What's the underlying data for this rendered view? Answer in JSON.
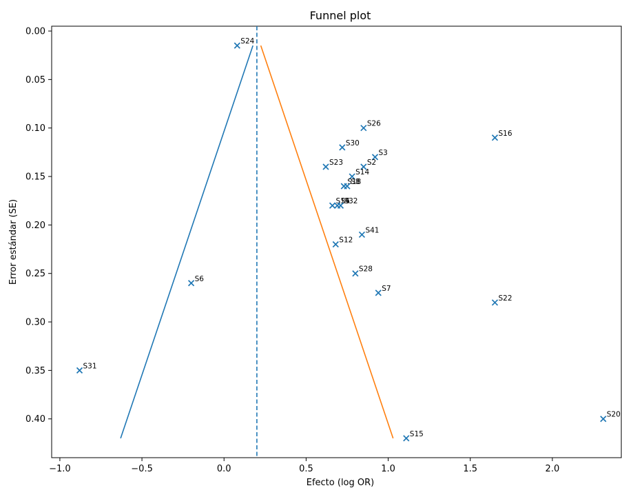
{
  "chart_data": {
    "type": "scatter",
    "title": "Funnel plot",
    "xlabel": "Efecto (log OR)",
    "ylabel": "Error estándar (SE)",
    "xlim": [
      -1.05,
      2.42
    ],
    "ylim": [
      0.44,
      -0.005
    ],
    "y_inverted": true,
    "xticks": [
      -1.0,
      -0.5,
      0.0,
      0.5,
      1.0,
      1.5,
      2.0
    ],
    "xtick_labels": [
      "−1.0",
      "−0.5",
      "0.0",
      "0.5",
      "1.0",
      "1.5",
      "2.0"
    ],
    "yticks": [
      0.0,
      0.05,
      0.1,
      0.15,
      0.2,
      0.25,
      0.3,
      0.35,
      0.4
    ],
    "ytick_labels": [
      "0.00",
      "0.05",
      "0.10",
      "0.15",
      "0.20",
      "0.25",
      "0.30",
      "0.35",
      "0.40"
    ],
    "grid": false,
    "marker": "x",
    "marker_color": "#1f77b4",
    "reference_line": {
      "x": 0.2,
      "style": "dashed",
      "color": "#1f77b4"
    },
    "funnel_lines": [
      {
        "points": [
          [
            0.176,
            0.015
          ],
          [
            -0.63,
            0.42
          ]
        ],
        "color": "#1f77b4"
      },
      {
        "points": [
          [
            0.224,
            0.015
          ],
          [
            1.03,
            0.42
          ]
        ],
        "color": "#ff7f0e"
      }
    ],
    "points": [
      {
        "label": "S24",
        "x": 0.08,
        "y": 0.015
      },
      {
        "label": "S26",
        "x": 0.85,
        "y": 0.1
      },
      {
        "label": "S16",
        "x": 1.65,
        "y": 0.11
      },
      {
        "label": "S30",
        "x": 0.72,
        "y": 0.12
      },
      {
        "label": "S3",
        "x": 0.92,
        "y": 0.13
      },
      {
        "label": "S23",
        "x": 0.62,
        "y": 0.14
      },
      {
        "label": "S2",
        "x": 0.85,
        "y": 0.14
      },
      {
        "label": "S14",
        "x": 0.78,
        "y": 0.15
      },
      {
        "label": "S18",
        "x": 0.73,
        "y": 0.16
      },
      {
        "label": "S8",
        "x": 0.75,
        "y": 0.16
      },
      {
        "label": "S14",
        "x": 0.66,
        "y": 0.18
      },
      {
        "label": "S5",
        "x": 0.69,
        "y": 0.18
      },
      {
        "label": "S32",
        "x": 0.71,
        "y": 0.18
      },
      {
        "label": "S41",
        "x": 0.84,
        "y": 0.21
      },
      {
        "label": "S12",
        "x": 0.68,
        "y": 0.22
      },
      {
        "label": "S28",
        "x": 0.8,
        "y": 0.25
      },
      {
        "label": "S7",
        "x": 0.94,
        "y": 0.27
      },
      {
        "label": "S22",
        "x": 1.65,
        "y": 0.28
      },
      {
        "label": "S6",
        "x": -0.2,
        "y": 0.26
      },
      {
        "label": "S31",
        "x": -0.88,
        "y": 0.35
      },
      {
        "label": "S15",
        "x": 1.11,
        "y": 0.42
      },
      {
        "label": "S20",
        "x": 2.31,
        "y": 0.4
      }
    ]
  }
}
